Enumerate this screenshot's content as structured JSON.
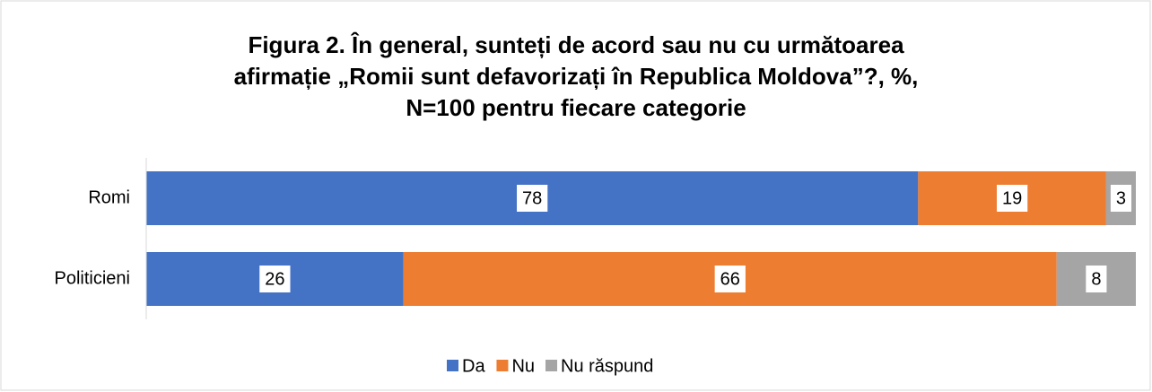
{
  "chart_data": {
    "type": "stacked_bar_horizontal",
    "title": [
      "Figura 2. În general, sunteți de acord sau nu cu următoarea",
      "afirmație „Romii sunt defavorizați în Republica Moldova”?, %,",
      "N=100 pentru fiecare categorie"
    ],
    "categories": [
      "Romi",
      "Politicieni"
    ],
    "series": [
      {
        "name": "Da",
        "color": "#4472c4",
        "values": [
          78,
          26
        ]
      },
      {
        "name": "Nu",
        "color": "#ed7d31",
        "values": [
          19,
          66
        ]
      },
      {
        "name": "Nu răspund",
        "color": "#a5a5a5",
        "values": [
          3,
          8
        ]
      }
    ],
    "xlim": [
      0,
      100
    ],
    "legend": "bottom"
  }
}
